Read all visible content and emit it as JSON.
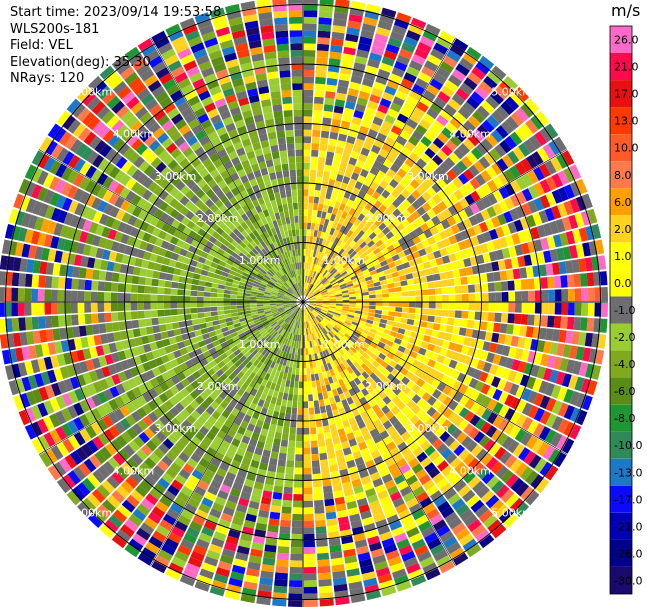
{
  "header": {
    "start_time": "Start time: 2023/09/14 19:53:58",
    "instrument": "WLS200s-181",
    "field": "Field: VEL",
    "elevation": "Elevation(deg): 35.30",
    "nrays": "NRays: 120"
  },
  "chart_data": {
    "type": "ppi",
    "field": "VEL",
    "units": "m/s",
    "n_rays": 120,
    "range_rings_km": [
      1,
      2,
      3,
      4,
      5
    ],
    "ring_labels": [
      "1.00km",
      "2.00km",
      "3.00km",
      "4.00km",
      "5.00km"
    ],
    "max_range_km": 5.5,
    "colorbar": {
      "unit_label": "m/s",
      "ticks": [
        "26.0",
        "21.0",
        "17.0",
        "13.0",
        "10.0",
        "8.0",
        "6.0",
        "2.0",
        "1.0",
        "0.0",
        "-1.0",
        "-2.0",
        "-4.0",
        "-6.0",
        "-8.0",
        "-10.0",
        "-13.0",
        "-17.0",
        "-21.0",
        "-26.0",
        "-30.0"
      ],
      "colors": [
        "#ff69c8",
        "#ff0a4a",
        "#e81010",
        "#ff3a00",
        "#ff5a28",
        "#ff7a4a",
        "#ffa000",
        "#ffd21e",
        "#ffff0a",
        "#ffff00",
        "#6e6e70",
        "#9acd32",
        "#7faa1e",
        "#5a8c18",
        "#1e9632",
        "#2e8b57",
        "#1e78c8",
        "#0a0aff",
        "#0000b4",
        "#00008b",
        "#1a0a6e"
      ]
    },
    "velocity_pattern": {
      "core_range_km": 3.2,
      "east_side": "positive (yellow, 0 to 2 m/s)",
      "west_side": "negative (green, -1 to -4 m/s)",
      "outer_range": "noisy, full colour scale"
    }
  }
}
